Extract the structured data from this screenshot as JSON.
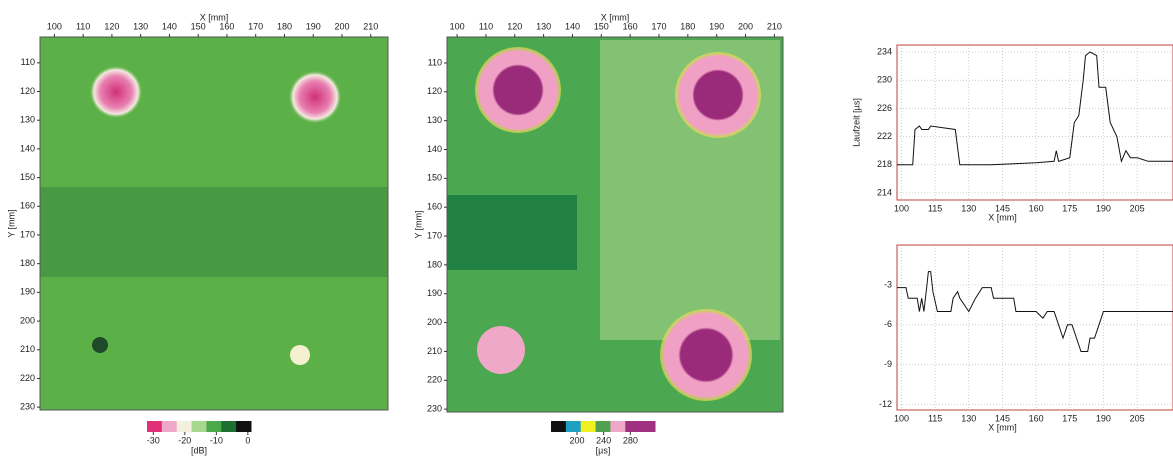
{
  "chart_data": [
    {
      "type": "heatmap",
      "xlabel": "X [mm]",
      "ylabel": "Y [mm]",
      "xlim": [
        95,
        216
      ],
      "xticks": [
        100,
        110,
        120,
        130,
        140,
        150,
        160,
        170,
        180,
        190,
        200,
        210
      ],
      "ylim": [
        101,
        231
      ],
      "yticks": [
        110,
        120,
        130,
        140,
        150,
        160,
        170,
        180,
        190,
        200,
        210,
        220,
        230
      ],
      "colorbar_label": "[dB]",
      "colorbar_lim": [
        -32,
        1
      ],
      "colorbar_ticks": [
        -30,
        -20,
        -10,
        0
      ],
      "colorbar_colors": [
        "#e0307a",
        "#f0a8c8",
        "#f4f0e0",
        "#a8d890",
        "#4caa48",
        "#1e7030",
        "#111111"
      ]
    },
    {
      "type": "heatmap",
      "xlabel": "X [mm]",
      "ylabel": "Y [mm]",
      "xlim": [
        96.5,
        213
      ],
      "xticks": [
        100,
        110,
        120,
        130,
        140,
        150,
        160,
        170,
        180,
        190,
        200,
        210
      ],
      "ylim": [
        101,
        231
      ],
      "yticks": [
        110,
        120,
        130,
        140,
        150,
        160,
        170,
        180,
        190,
        200,
        210,
        220,
        230
      ],
      "colorbar_label": "[µs]",
      "colorbar_lim": [
        161,
        317
      ],
      "colorbar_ticks": [
        200,
        240,
        280
      ],
      "colorbar_colors": [
        "#111111",
        "#20a0c0",
        "#f0f020",
        "#50a050",
        "#f0a8c8",
        "#a03080",
        "#a03080"
      ]
    },
    {
      "type": "line",
      "ylabel": "Laufzeit [µs]",
      "xlabel": "X [mm]",
      "color": "#111111",
      "grid": true,
      "xlim": [
        98,
        221
      ],
      "xticks": [
        100,
        115,
        130,
        145,
        160,
        175,
        190,
        205
      ],
      "ylim": [
        213,
        235
      ],
      "yticks": [
        214,
        218,
        222,
        226,
        230,
        234
      ],
      "x": [
        98,
        103,
        105,
        106,
        108,
        109,
        112,
        113,
        124,
        126,
        140,
        160,
        168,
        169,
        170,
        175,
        177,
        179,
        181,
        182,
        184,
        187,
        188,
        191,
        193,
        196,
        198,
        200,
        202,
        205,
        210,
        221
      ],
      "values": [
        218,
        218,
        218,
        223,
        223.5,
        223,
        223,
        223.5,
        223,
        218,
        218,
        218.3,
        218.5,
        220,
        218.5,
        219,
        224,
        225,
        230,
        233.5,
        234,
        233.5,
        229,
        229,
        224,
        222,
        218.5,
        220,
        219,
        219,
        218.5,
        218.5
      ]
    },
    {
      "type": "line",
      "xlabel": "X [mm]",
      "color": "#111111",
      "grid": true,
      "xlim": [
        98,
        221
      ],
      "xticks": [
        100,
        115,
        130,
        145,
        160,
        175,
        190,
        205
      ],
      "ylim": [
        -12.4,
        0
      ],
      "yticks": [
        -3,
        -6,
        -9,
        -12
      ],
      "x": [
        98,
        102,
        103,
        107,
        108,
        109,
        110,
        111,
        112,
        113,
        114,
        116,
        122,
        123,
        125,
        126,
        130,
        133,
        136,
        140,
        141,
        150,
        151,
        160,
        163,
        165,
        168,
        170,
        172,
        174,
        176,
        178,
        180,
        183,
        184,
        186,
        188,
        190,
        200,
        210,
        221
      ],
      "values": [
        -3.2,
        -3.2,
        -4,
        -4,
        -5,
        -4,
        -5,
        -3.5,
        -2,
        -2,
        -3.5,
        -5,
        -5,
        -4,
        -3.5,
        -4,
        -5,
        -4,
        -3.2,
        -3.2,
        -4,
        -4,
        -5,
        -5,
        -5.5,
        -5,
        -5,
        -6,
        -7,
        -6,
        -6,
        -7,
        -8,
        -8,
        -7,
        -7,
        -6,
        -5,
        -5,
        -5,
        -5
      ]
    }
  ]
}
